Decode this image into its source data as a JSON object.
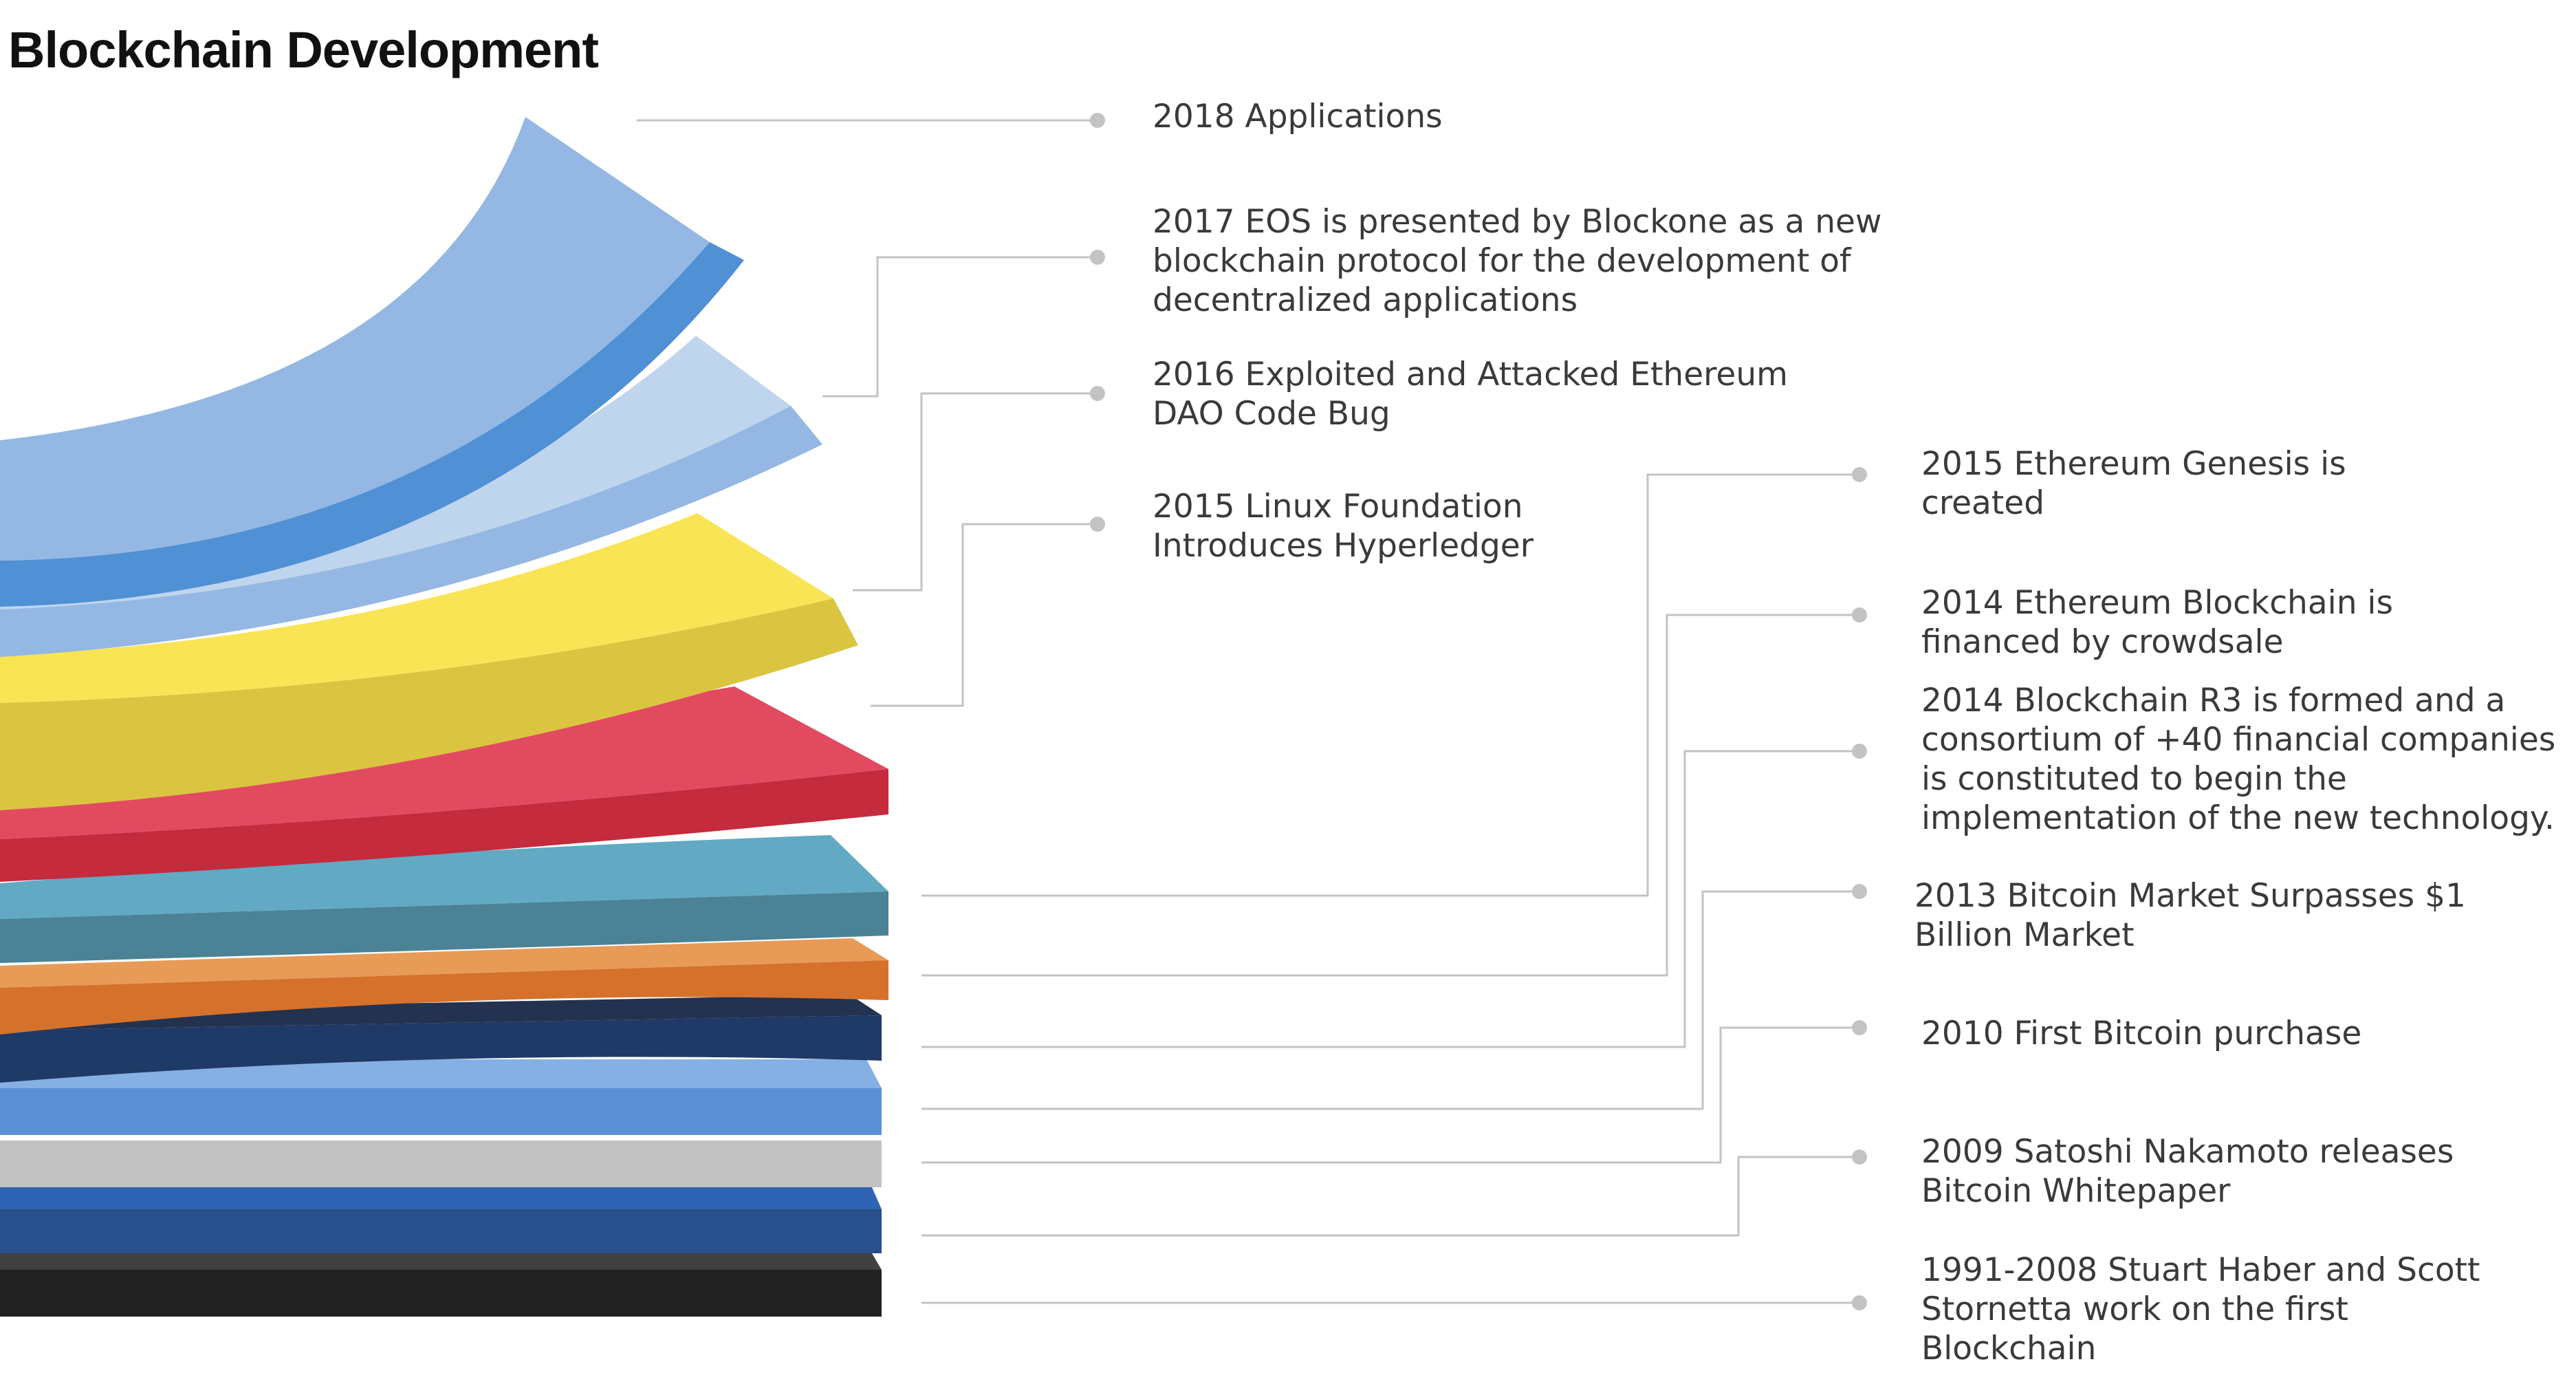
{
  "title": "Blockchain Development",
  "colors": {
    "connector": "#c3c3c3",
    "label_text": "#3a3a3a",
    "layers": {
      "black_top": "#404040",
      "black_front": "#222222",
      "navy_top": "#2f63b3",
      "navy_front": "#27508d",
      "gray": "#c2c2c2",
      "blue_top": "#86b0e4",
      "blue_front": "#5a8fd6",
      "darknavy_top": "#22324f",
      "darknavy_front": "#1f3a66",
      "orange_top": "#e89a57",
      "orange_front": "#d5712b",
      "teal_top": "#62a9c4",
      "teal_front": "#4b8296",
      "red_top": "#e24a60",
      "red_front": "#c42b3c",
      "yellow_top": "#f9e455",
      "yellow_front": "#dbc540",
      "paleblue_top": "#bfd5ee",
      "paleblue_front": "#94b8e3",
      "lightblue_top": "#94b8e3",
      "lightblue_front": "#5090d5"
    }
  },
  "milestones": [
    {
      "year": "2018",
      "lines": [
        "2018 Applications"
      ]
    },
    {
      "year": "2017",
      "lines": [
        "2017 EOS is presented by Blockone as a new",
        "blockchain protocol for the development of",
        "decentralized applications"
      ]
    },
    {
      "year": "2016",
      "lines": [
        "2016 Exploited and Attacked Ethereum",
        "DAO Code Bug"
      ]
    },
    {
      "year": "2015",
      "lines": [
        "2015 Linux Foundation",
        "Introduces Hyperledger"
      ]
    },
    {
      "year": "2015",
      "lines": [
        "2015 Ethereum Genesis is",
        "created"
      ]
    },
    {
      "year": "2014",
      "lines": [
        "2014 Ethereum Blockchain is",
        "financed by crowdsale"
      ]
    },
    {
      "year": "2014",
      "lines": [
        "2014 Blockchain R3 is formed and a",
        "consortium of +40 financial companies",
        "is constituted to begin the",
        "implementation of the new technology."
      ]
    },
    {
      "year": "2013",
      "lines": [
        "2013 Bitcoin Market Surpasses $1",
        "Billion Market"
      ]
    },
    {
      "year": "2010",
      "lines": [
        "2010 First Bitcoin purchase"
      ]
    },
    {
      "year": "2009",
      "lines": [
        "2009 Satoshi Nakamoto releases",
        "Bitcoin Whitepaper"
      ]
    },
    {
      "year": "1991-2008",
      "lines": [
        "1991-2008 Stuart Haber and Scott",
        "Stornetta work on the first",
        "Blockchain"
      ]
    }
  ]
}
